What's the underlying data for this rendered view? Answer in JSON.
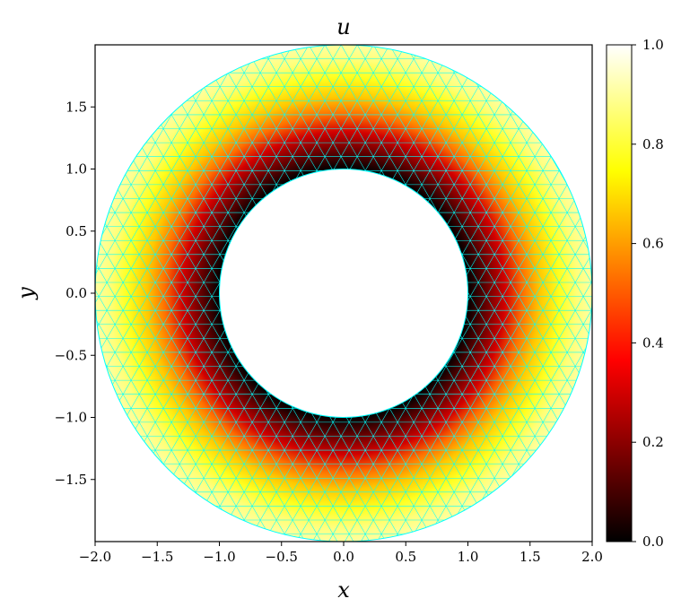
{
  "chart_data": {
    "type": "heatmap",
    "title": "u",
    "xlabel": "x",
    "ylabel": "y",
    "xlim": [
      -2.0,
      2.0
    ],
    "ylim": [
      -2.0,
      2.0
    ],
    "x_ticks": [
      "−2.0",
      "−1.5",
      "−1.0",
      "−0.5",
      "0.0",
      "0.5",
      "1.0",
      "1.5",
      "2.0"
    ],
    "x_tick_values": [
      -2.0,
      -1.5,
      -1.0,
      -0.5,
      0.0,
      0.5,
      1.0,
      1.5,
      2.0
    ],
    "y_ticks": [
      "1.5",
      "1.0",
      "0.5",
      "0.0",
      "−0.5",
      "−1.0",
      "−1.5"
    ],
    "y_tick_values": [
      1.5,
      1.0,
      0.5,
      0.0,
      -0.5,
      -1.0,
      -1.5
    ],
    "domain": {
      "shape": "annulus",
      "inner_radius": 1.0,
      "outer_radius": 2.0
    },
    "colormap": "hot",
    "mesh_color": "#00ffff",
    "colorbar": {
      "range": [
        0.0,
        1.0
      ],
      "ticks": [
        "0.0",
        "0.2",
        "0.4",
        "0.6",
        "0.8",
        "1.0"
      ],
      "tick_values": [
        0.0,
        0.2,
        0.4,
        0.6,
        0.8,
        1.0
      ]
    },
    "field_samples": {
      "description_r": [
        1.0,
        1.25,
        1.5,
        1.75,
        2.0
      ],
      "u_at_r": [
        0.0,
        0.3,
        0.6,
        0.8,
        0.9
      ]
    }
  }
}
